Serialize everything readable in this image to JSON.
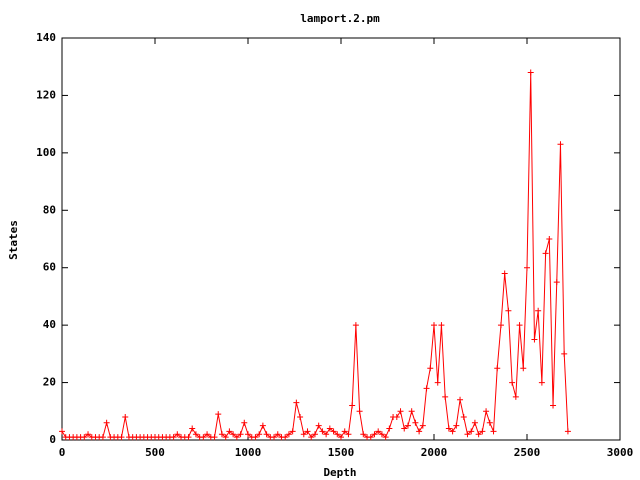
{
  "chart_data": {
    "type": "line",
    "title": "lamport.2.pm",
    "x_label": "Depth",
    "y_label": "States",
    "x": [
      0,
      20,
      40,
      60,
      80,
      100,
      120,
      140,
      160,
      180,
      200,
      220,
      240,
      260,
      280,
      300,
      320,
      340,
      360,
      380,
      400,
      420,
      440,
      460,
      480,
      500,
      520,
      540,
      560,
      580,
      600,
      620,
      640,
      660,
      680,
      700,
      720,
      740,
      760,
      780,
      800,
      820,
      840,
      860,
      880,
      900,
      920,
      940,
      960,
      980,
      1000,
      1020,
      1040,
      1060,
      1080,
      1100,
      1120,
      1140,
      1160,
      1180,
      1200,
      1220,
      1240,
      1260,
      1280,
      1300,
      1320,
      1340,
      1360,
      1380,
      1400,
      1420,
      1440,
      1460,
      1480,
      1500,
      1520,
      1540,
      1560,
      1580,
      1600,
      1620,
      1640,
      1660,
      1680,
      1700,
      1720,
      1740,
      1760,
      1780,
      1800,
      1820,
      1840,
      1860,
      1880,
      1900,
      1920,
      1940,
      1960,
      1980,
      2000,
      2020,
      2040,
      2060,
      2080,
      2100,
      2120,
      2140,
      2160,
      2180,
      2200,
      2220,
      2240,
      2260,
      2280,
      2300,
      2320,
      2340,
      2360,
      2380,
      2400,
      2420,
      2440,
      2460,
      2480,
      2500,
      2520,
      2540,
      2560,
      2580,
      2600,
      2620,
      2640,
      2660,
      2680,
      2700,
      2720
    ],
    "series": [
      {
        "name": "States",
        "color": "#ff0000",
        "values": [
          3,
          1,
          1,
          1,
          1,
          1,
          1,
          2,
          1,
          1,
          1,
          1,
          6,
          1,
          1,
          1,
          1,
          8,
          1,
          1,
          1,
          1,
          1,
          1,
          1,
          1,
          1,
          1,
          1,
          1,
          1,
          2,
          1,
          1,
          1,
          4,
          2,
          1,
          1,
          2,
          1,
          1,
          9,
          2,
          1,
          3,
          2,
          1,
          2,
          6,
          2,
          1,
          1,
          2,
          5,
          2,
          1,
          1,
          2,
          1,
          1,
          2,
          3,
          13,
          8,
          2,
          3,
          1,
          2,
          5,
          3,
          2,
          4,
          3,
          2,
          1,
          3,
          2,
          12,
          40,
          10,
          2,
          1,
          1,
          2,
          3,
          2,
          1,
          4,
          8,
          8,
          10,
          4,
          5,
          10,
          6,
          3,
          5,
          18,
          25,
          40,
          20,
          40,
          15,
          4,
          3,
          5,
          14,
          8,
          2,
          3,
          6,
          2,
          3,
          10,
          6,
          3,
          25,
          40,
          58,
          45,
          20,
          15,
          40,
          25,
          60,
          128,
          35,
          45,
          20,
          65,
          70,
          12,
          55,
          103,
          30,
          3
        ]
      }
    ],
    "xlim": [
      0,
      3000
    ],
    "xticks": [
      0,
      500,
      1000,
      1500,
      2000,
      2500,
      3000
    ],
    "ylim": [
      0,
      140
    ],
    "yticks": [
      0,
      20,
      40,
      60,
      80,
      100,
      120,
      140
    ]
  }
}
